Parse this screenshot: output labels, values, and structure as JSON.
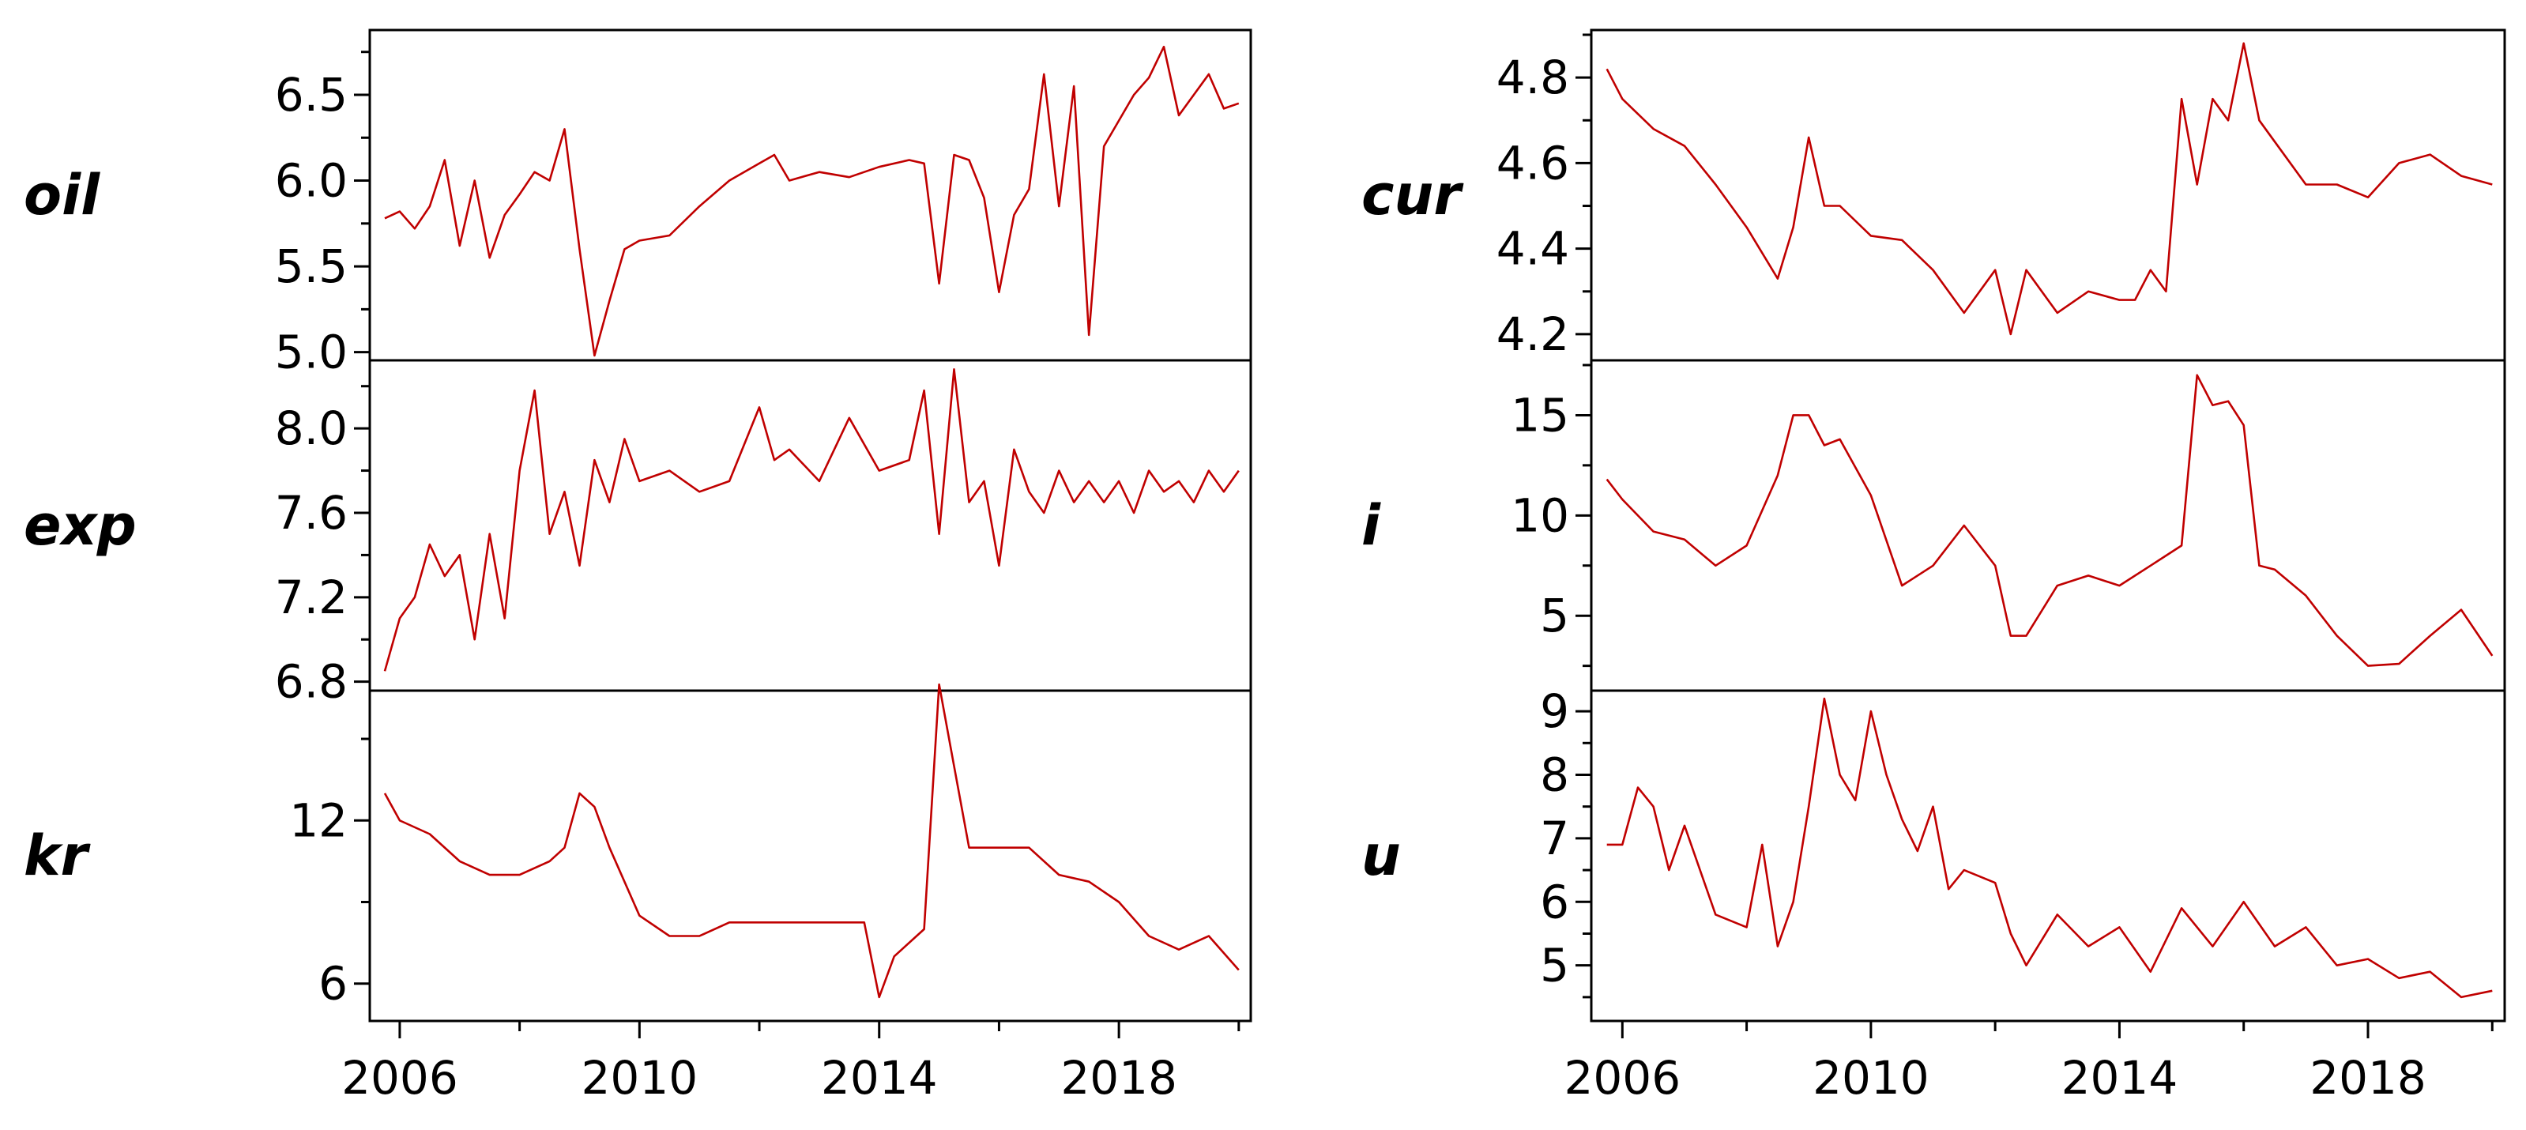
{
  "chart_data": [
    {
      "type": "line",
      "variable": "oil",
      "color": "#c00000",
      "xlim": [
        2005.5,
        2020.2
      ],
      "ylim": [
        4.98,
        6.85
      ],
      "yticks": [
        "5.0",
        "5.5",
        "6.0",
        "6.5"
      ],
      "xticks": [
        "2006",
        "2010",
        "2014",
        "2018"
      ],
      "x": [
        2005.75,
        2006.0,
        2006.25,
        2006.5,
        2006.75,
        2007.0,
        2007.25,
        2007.5,
        2007.75,
        2008.0,
        2008.25,
        2008.5,
        2008.75,
        2009.0,
        2009.25,
        2009.5,
        2009.75,
        2010.0,
        2010.5,
        2011.0,
        2011.5,
        2012.0,
        2012.25,
        2012.5,
        2013.0,
        2013.5,
        2014.0,
        2014.5,
        2014.75,
        2015.0,
        2015.25,
        2015.5,
        2015.75,
        2016.0,
        2016.25,
        2016.5,
        2016.75,
        2017.0,
        2017.25,
        2017.5,
        2017.75,
        2018.0,
        2018.25,
        2018.5,
        2018.75,
        2019.0,
        2019.25,
        2019.5,
        2019.75,
        2020.0
      ],
      "y": [
        5.78,
        5.82,
        5.72,
        5.85,
        6.12,
        5.62,
        6.0,
        5.55,
        5.8,
        5.92,
        6.05,
        6.0,
        6.3,
        5.6,
        4.98,
        5.3,
        5.6,
        5.65,
        5.68,
        5.85,
        6.0,
        6.1,
        6.15,
        6.0,
        6.05,
        6.02,
        6.08,
        6.12,
        6.1,
        5.4,
        6.15,
        6.12,
        5.9,
        5.35,
        5.8,
        5.95,
        6.62,
        5.85,
        6.55,
        5.1,
        6.2,
        6.35,
        6.5,
        6.6,
        6.78,
        6.38,
        6.5,
        6.62,
        6.42,
        6.45
      ]
    },
    {
      "type": "line",
      "variable": "exp",
      "color": "#c00000",
      "xlim": [
        2005.5,
        2020.2
      ],
      "ylim": [
        6.78,
        8.3
      ],
      "yticks": [
        "6.8",
        "7.2",
        "7.6",
        "8.0"
      ],
      "xticks": [
        "2006",
        "2010",
        "2014",
        "2018"
      ],
      "x": [
        2005.75,
        2006.0,
        2006.25,
        2006.5,
        2006.75,
        2007.0,
        2007.25,
        2007.5,
        2007.75,
        2008.0,
        2008.25,
        2008.5,
        2008.75,
        2009.0,
        2009.25,
        2009.5,
        2009.75,
        2010.0,
        2010.5,
        2011.0,
        2011.5,
        2012.0,
        2012.25,
        2012.5,
        2013.0,
        2013.5,
        2014.0,
        2014.5,
        2014.75,
        2015.0,
        2015.25,
        2015.5,
        2015.75,
        2016.0,
        2016.25,
        2016.5,
        2016.75,
        2017.0,
        2017.25,
        2017.5,
        2017.75,
        2018.0,
        2018.25,
        2018.5,
        2018.75,
        2019.0,
        2019.25,
        2019.5,
        2019.75,
        2020.0
      ],
      "y": [
        6.85,
        7.1,
        7.2,
        7.45,
        7.3,
        7.4,
        7.0,
        7.5,
        7.1,
        7.8,
        8.18,
        7.5,
        7.7,
        7.35,
        7.85,
        7.65,
        7.95,
        7.75,
        7.8,
        7.7,
        7.75,
        8.1,
        7.85,
        7.9,
        7.75,
        8.05,
        7.8,
        7.85,
        8.18,
        7.5,
        8.28,
        7.65,
        7.75,
        7.35,
        7.9,
        7.7,
        7.6,
        7.8,
        7.65,
        7.75,
        7.65,
        7.75,
        7.6,
        7.8,
        7.7,
        7.75,
        7.65,
        7.8,
        7.7,
        7.8
      ]
    },
    {
      "type": "line",
      "variable": "kr",
      "color": "#c00000",
      "xlim": [
        2005.5,
        2020.2
      ],
      "ylim": [
        4.8,
        16.6
      ],
      "yticks": [
        "6",
        "12"
      ],
      "xticks": [
        "2006",
        "2010",
        "2014",
        "2018"
      ],
      "x": [
        2005.75,
        2006.0,
        2006.5,
        2007.0,
        2007.5,
        2008.0,
        2008.5,
        2008.75,
        2009.0,
        2009.25,
        2009.5,
        2010.0,
        2010.5,
        2011.0,
        2011.5,
        2012.0,
        2013.0,
        2013.75,
        2014.0,
        2014.25,
        2014.75,
        2015.0,
        2015.25,
        2015.5,
        2016.0,
        2016.5,
        2017.0,
        2017.5,
        2018.0,
        2018.5,
        2019.0,
        2019.5,
        2020.0
      ],
      "y": [
        13.0,
        12.0,
        11.5,
        10.5,
        10.0,
        10.0,
        10.5,
        11.0,
        13.0,
        12.5,
        11.0,
        8.5,
        7.75,
        7.75,
        8.25,
        8.25,
        8.25,
        8.25,
        5.5,
        7.0,
        8.0,
        17.0,
        14.0,
        11.0,
        11.0,
        11.0,
        10.0,
        9.75,
        9.0,
        7.75,
        7.25,
        7.75,
        6.5
      ]
    },
    {
      "type": "line",
      "variable": "cur",
      "color": "#c00000",
      "xlim": [
        2005.5,
        2020.2
      ],
      "ylim": [
        4.15,
        4.9
      ],
      "yticks": [
        "4.2",
        "4.4",
        "4.6",
        "4.8"
      ],
      "xticks": [
        "2006",
        "2010",
        "2014",
        "2018"
      ],
      "x": [
        2005.75,
        2006.0,
        2006.5,
        2007.0,
        2007.5,
        2008.0,
        2008.5,
        2008.75,
        2009.0,
        2009.25,
        2009.5,
        2010.0,
        2010.5,
        2011.0,
        2011.5,
        2012.0,
        2012.25,
        2012.5,
        2013.0,
        2013.5,
        2014.0,
        2014.25,
        2014.5,
        2014.75,
        2015.0,
        2015.25,
        2015.5,
        2015.75,
        2016.0,
        2016.25,
        2016.5,
        2017.0,
        2017.5,
        2018.0,
        2018.5,
        2019.0,
        2019.5,
        2020.0
      ],
      "y": [
        4.82,
        4.75,
        4.68,
        4.64,
        4.55,
        4.45,
        4.33,
        4.45,
        4.66,
        4.5,
        4.5,
        4.43,
        4.42,
        4.35,
        4.25,
        4.35,
        4.2,
        4.35,
        4.25,
        4.3,
        4.28,
        4.28,
        4.35,
        4.3,
        4.75,
        4.55,
        4.75,
        4.7,
        4.88,
        4.7,
        4.65,
        4.55,
        4.55,
        4.52,
        4.6,
        4.62,
        4.57,
        4.55
      ]
    },
    {
      "type": "line",
      "variable": "i",
      "color": "#c00000",
      "xlim": [
        2005.5,
        2020.2
      ],
      "ylim": [
        1.5,
        17.5
      ],
      "yticks": [
        "5",
        "10",
        "15"
      ],
      "xticks": [
        "2006",
        "2010",
        "2014",
        "2018"
      ],
      "x": [
        2005.75,
        2006.0,
        2006.5,
        2007.0,
        2007.5,
        2008.0,
        2008.5,
        2008.75,
        2009.0,
        2009.25,
        2009.5,
        2010.0,
        2010.5,
        2011.0,
        2011.5,
        2012.0,
        2012.25,
        2012.5,
        2013.0,
        2013.5,
        2014.0,
        2014.5,
        2014.75,
        2015.0,
        2015.25,
        2015.5,
        2015.75,
        2016.0,
        2016.25,
        2016.5,
        2017.0,
        2017.5,
        2018.0,
        2018.5,
        2019.0,
        2019.5,
        2020.0
      ],
      "y": [
        11.8,
        10.8,
        9.2,
        8.8,
        7.5,
        8.5,
        12.0,
        15.0,
        15.0,
        13.5,
        13.8,
        11.0,
        6.5,
        7.5,
        9.5,
        7.5,
        4.0,
        4.0,
        6.5,
        7.0,
        6.5,
        7.5,
        8.0,
        8.5,
        17.0,
        15.5,
        15.7,
        14.5,
        7.5,
        7.3,
        6.0,
        4.0,
        2.5,
        2.6,
        4.0,
        5.3,
        3.0
      ]
    },
    {
      "type": "line",
      "variable": "u",
      "color": "#c00000",
      "xlim": [
        2005.5,
        2020.2
      ],
      "ylim": [
        4.2,
        9.25
      ],
      "yticks": [
        "5",
        "6",
        "7",
        "8",
        "9"
      ],
      "xticks": [
        "2006",
        "2010",
        "2014",
        "2018"
      ],
      "x": [
        2005.75,
        2006.0,
        2006.25,
        2006.5,
        2006.75,
        2007.0,
        2007.5,
        2008.0,
        2008.25,
        2008.5,
        2008.75,
        2009.0,
        2009.25,
        2009.5,
        2009.75,
        2010.0,
        2010.25,
        2010.5,
        2010.75,
        2011.0,
        2011.25,
        2011.5,
        2012.0,
        2012.25,
        2012.5,
        2013.0,
        2013.5,
        2014.0,
        2014.5,
        2015.0,
        2015.5,
        2016.0,
        2016.5,
        2017.0,
        2017.5,
        2018.0,
        2018.5,
        2019.0,
        2019.5,
        2020.0
      ],
      "y": [
        6.9,
        6.9,
        7.8,
        7.5,
        6.5,
        7.2,
        5.8,
        5.6,
        6.9,
        5.3,
        6.0,
        7.5,
        9.2,
        8.0,
        7.6,
        9.0,
        8.0,
        7.3,
        6.8,
        7.5,
        6.2,
        6.5,
        6.3,
        5.5,
        5.0,
        5.8,
        5.3,
        5.6,
        4.9,
        5.9,
        5.3,
        6.0,
        5.3,
        5.6,
        5.0,
        5.1,
        4.8,
        4.9,
        4.5,
        4.6
      ]
    }
  ]
}
